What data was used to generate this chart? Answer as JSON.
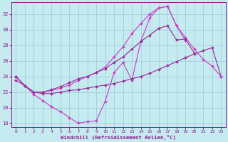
{
  "xlabel": "Windchill (Refroidissement éolien,°C)",
  "xlim": [
    -0.5,
    23.5
  ],
  "ylim": [
    17.5,
    33.5
  ],
  "yticks": [
    18,
    20,
    22,
    24,
    26,
    28,
    30,
    32
  ],
  "xticks": [
    0,
    1,
    2,
    3,
    4,
    5,
    6,
    7,
    8,
    9,
    10,
    11,
    12,
    13,
    14,
    15,
    16,
    17,
    18,
    19,
    20,
    21,
    22,
    23
  ],
  "background_color": "#c5eaf0",
  "grid_color": "#9ecfdc",
  "line_color": "#8b1a8b",
  "lines": [
    {
      "x": [
        0,
        1,
        2,
        3,
        4,
        5,
        6,
        7,
        8,
        9,
        10,
        11,
        12,
        13,
        14,
        15,
        16,
        17,
        18,
        19
      ],
      "y": [
        24.0,
        22.8,
        21.7,
        20.9,
        20.1,
        19.5,
        18.7,
        18.0,
        18.2,
        18.3,
        20.8,
        24.5,
        25.8,
        23.5,
        28.5,
        31.5,
        32.8,
        33.0,
        30.5,
        28.6
      ]
    },
    {
      "x": [
        0,
        1,
        2,
        3,
        4,
        5,
        6,
        7,
        8,
        9,
        10,
        11,
        12,
        13,
        14,
        15,
        16,
        17,
        18,
        19,
        20,
        21,
        22,
        23
      ],
      "y": [
        23.5,
        22.8,
        22.0,
        21.8,
        21.8,
        22.0,
        22.2,
        22.3,
        22.5,
        22.7,
        22.9,
        23.1,
        23.4,
        23.7,
        24.0,
        24.4,
        24.9,
        25.4,
        25.9,
        26.4,
        26.9,
        27.3,
        27.7,
        24.0
      ]
    },
    {
      "x": [
        0,
        1,
        2,
        3,
        4,
        5,
        6,
        7,
        8,
        9,
        10,
        11,
        12,
        13,
        14,
        15,
        16,
        17,
        18,
        19,
        20,
        21,
        22,
        23
      ],
      "y": [
        24.0,
        22.8,
        22.0,
        22.0,
        22.2,
        22.5,
        22.9,
        23.5,
        24.0,
        24.5,
        25.2,
        26.5,
        27.8,
        29.5,
        30.8,
        32.0,
        32.8,
        33.0,
        30.5,
        29.0,
        27.5,
        26.2,
        25.3,
        24.0
      ]
    },
    {
      "x": [
        0,
        1,
        2,
        3,
        4,
        5,
        6,
        7,
        8,
        9,
        10,
        11,
        12,
        13,
        14,
        15,
        16,
        17,
        18,
        19,
        20
      ],
      "y": [
        24.0,
        22.8,
        22.0,
        22.0,
        22.3,
        22.7,
        23.2,
        23.7,
        24.0,
        24.5,
        25.0,
        25.8,
        26.5,
        27.5,
        28.5,
        29.3,
        30.2,
        30.5,
        28.7,
        28.8,
        27.0
      ]
    }
  ],
  "marker": "D",
  "markersize": 2.0,
  "linewidth": 0.85
}
